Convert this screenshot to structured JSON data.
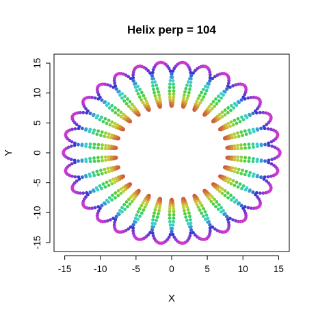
{
  "chart_data": {
    "type": "scatter",
    "title": "Helix perp = 104",
    "xlabel": "X",
    "ylabel": "Y",
    "xlim": [
      -16.5,
      16.5
    ],
    "ylim": [
      -16.5,
      16.5
    ],
    "xticks": [
      -15,
      -10,
      -5,
      0,
      5,
      10,
      15
    ],
    "yticks": [
      -15,
      -10,
      -5,
      0,
      5,
      10,
      15
    ],
    "grid": false,
    "legend": "none",
    "series": [
      {
        "shape": "helix",
        "inner_radius": 7.8,
        "outer_radius": 15.2,
        "loops": 30,
        "point_count": 1200,
        "color_by": "radial distance (red inner, through yellow, green, cyan, blue, to purple outer)"
      }
    ],
    "colors": {
      "inner": "#c8503a",
      "outer": "#b040c0"
    }
  }
}
